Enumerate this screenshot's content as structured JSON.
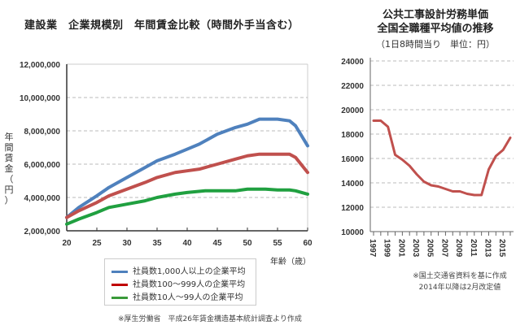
{
  "chart_data": [
    {
      "type": "line",
      "title": "建設業　企業規模別　年間賃金比較（時間外手当含む）",
      "xlabel": "年齢（歳）",
      "ylabel": "年間賃金（円）",
      "xlim": [
        20,
        60
      ],
      "ylim": [
        2000000,
        12000000
      ],
      "x_ticks": [
        "20",
        "25",
        "30",
        "35",
        "40",
        "45",
        "50",
        "55",
        "60"
      ],
      "y_ticks": [
        "2,000,000",
        "4,000,000",
        "6,000,000",
        "8,000,000",
        "10,000,000",
        "12,000,000"
      ],
      "grid": "horizontal dashed",
      "legend_position": "bottom-center",
      "series": [
        {
          "name": "社員数1,000人以上の企業平均",
          "color": "#4f81bd",
          "x": [
            20,
            22,
            25,
            27,
            30,
            33,
            35,
            38,
            40,
            42,
            45,
            48,
            50,
            52,
            55,
            57,
            58,
            60
          ],
          "values": [
            2800000,
            3400000,
            4100000,
            4600000,
            5200000,
            5800000,
            6200000,
            6600000,
            6900000,
            7200000,
            7800000,
            8200000,
            8400000,
            8700000,
            8700000,
            8600000,
            8300000,
            7100000
          ]
        },
        {
          "name": "社員数100〜999人の企業平均",
          "color": "#c0504d",
          "x": [
            20,
            22,
            25,
            27,
            30,
            33,
            35,
            38,
            40,
            42,
            45,
            48,
            50,
            52,
            55,
            57,
            58,
            60
          ],
          "values": [
            2800000,
            3200000,
            3700000,
            4100000,
            4500000,
            4900000,
            5200000,
            5500000,
            5600000,
            5700000,
            6000000,
            6300000,
            6500000,
            6600000,
            6600000,
            6600000,
            6400000,
            5500000
          ]
        },
        {
          "name": "社員数10人〜99人の企業平均",
          "color": "#20a040",
          "x": [
            20,
            22,
            25,
            27,
            30,
            33,
            35,
            38,
            40,
            43,
            45,
            48,
            50,
            53,
            55,
            57,
            58,
            60
          ],
          "values": [
            2400000,
            2700000,
            3100000,
            3400000,
            3600000,
            3800000,
            4000000,
            4200000,
            4300000,
            4400000,
            4400000,
            4400000,
            4500000,
            4500000,
            4450000,
            4450000,
            4400000,
            4200000
          ]
        }
      ],
      "note": "※厚生労働省　平成26年賃金構造基本統計調査より作成"
    },
    {
      "type": "line",
      "title": "公共工事設計労務単価\n全国全職種平均値の推移",
      "subtitle": "（1日8時間当り　単位：円）",
      "xlim": [
        1997,
        2016
      ],
      "ylim": [
        10000,
        24000
      ],
      "x_ticks": [
        "1997",
        "1999",
        "2001",
        "2003",
        "2005",
        "2007",
        "2009",
        "2011",
        "2013",
        "2015"
      ],
      "y_ticks": [
        "10000",
        "12000",
        "14000",
        "16000",
        "18000",
        "20000",
        "22000",
        "24000"
      ],
      "grid": "horizontal dashed",
      "series": [
        {
          "name": "全国全職種平均値",
          "color": "#c0504d",
          "x": [
            1997,
            1998,
            1999,
            2000,
            2001,
            2002,
            2003,
            2004,
            2005,
            2006,
            2007,
            2008,
            2009,
            2010,
            2011,
            2012,
            2013,
            2014,
            2015,
            2016
          ],
          "values": [
            19100,
            19100,
            18600,
            16300,
            15900,
            15400,
            14700,
            14100,
            13800,
            13700,
            13500,
            13300,
            13300,
            13100,
            13000,
            13000,
            15100,
            16200,
            16700,
            17700
          ]
        }
      ],
      "notes": [
        "※国土交通省資料を基に作成",
        "2014年以降は2月改定値"
      ]
    }
  ],
  "left": {
    "title": "建設業　企業規模別　年間賃金比較（時間外手当含む）",
    "ylabel_chars": [
      "年",
      "間",
      "賃",
      "金",
      "（",
      "円",
      "）"
    ],
    "xlabel": "年齢（歳）",
    "legend": [
      {
        "label": "社員数1,000人以上の企業平均",
        "color": "#4f81bd"
      },
      {
        "label": "社員数100〜999人の企業平均",
        "color": "#c0504d"
      },
      {
        "label": "社員数10人〜99人の企業平均",
        "color": "#20a040"
      }
    ],
    "note": "※厚生労働省　平成26年賃金構造基本統計調査より作成"
  },
  "right": {
    "title_line1": "公共工事設計労務単価",
    "title_line2": "全国全職種平均値の推移",
    "subtitle": "（1日8時間当り　単位：円）",
    "note_line1": "※国土交通省資料を基に作成",
    "note_line2": "2014年以降は2月改定値"
  }
}
